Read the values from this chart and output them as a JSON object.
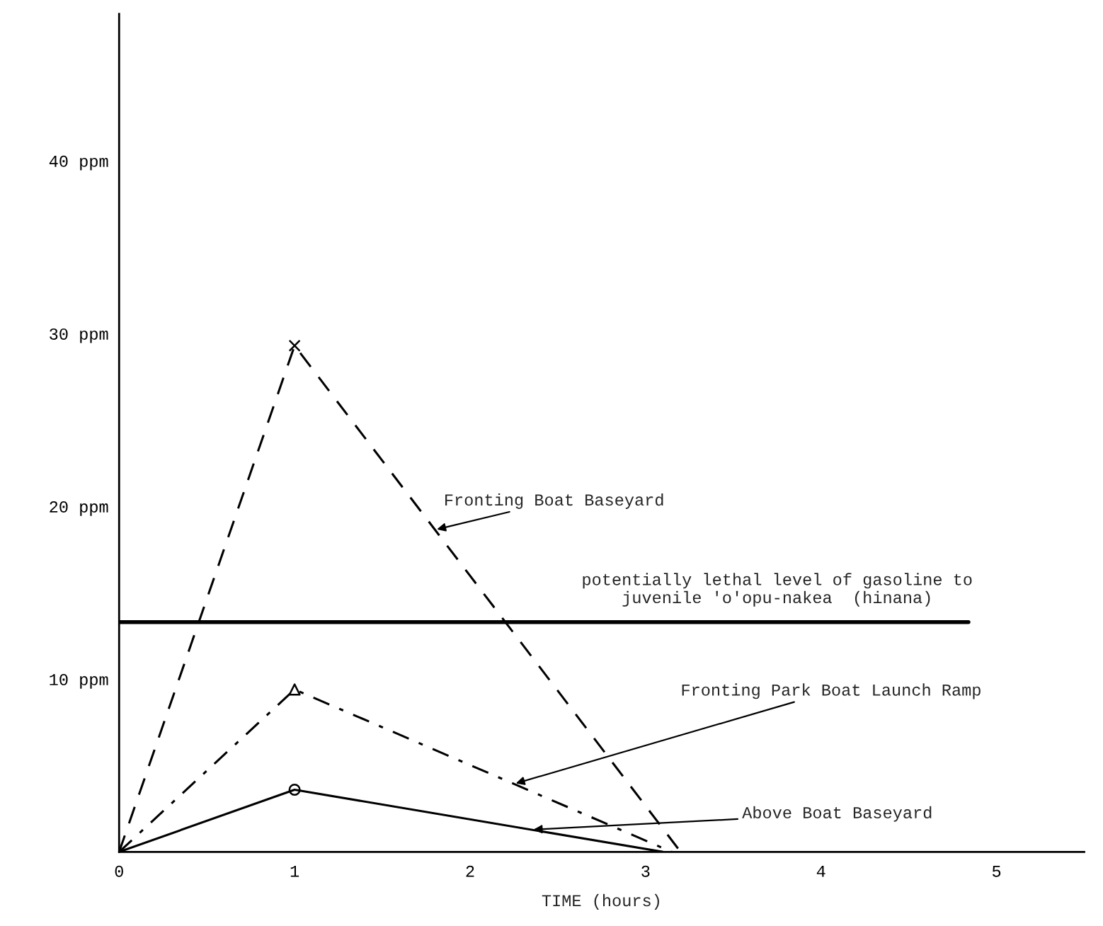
{
  "chart_data": {
    "type": "line",
    "xlabel": "TIME (hours)",
    "xlim": [
      0,
      5.5
    ],
    "xticks": [
      0,
      1,
      2,
      3,
      4,
      5
    ],
    "ylim": [
      0,
      48.5
    ],
    "yticks": [
      {
        "value": 10,
        "label": "10 ppm"
      },
      {
        "value": 20,
        "label": "20 ppm"
      },
      {
        "value": 30,
        "label": "30 ppm"
      },
      {
        "value": 40,
        "label": "40 ppm"
      }
    ],
    "grid": false,
    "legend": false,
    "series": [
      {
        "name": "Fronting Boat Baseyard",
        "color": "#000000",
        "x": [
          0,
          1,
          3.2
        ],
        "values": [
          0,
          29.3,
          0
        ],
        "line_style": "dashed"
      },
      {
        "name": "Fronting Park Boat Launch Ramp",
        "color": "#000000",
        "x": [
          0,
          1,
          3.15
        ],
        "values": [
          0,
          9.4,
          0
        ],
        "line_style": "dashdot"
      },
      {
        "name": "Above Boat Baseyard",
        "color": "#000000",
        "x": [
          0,
          1,
          3.1
        ],
        "values": [
          0,
          3.6,
          0
        ],
        "line_style": "solid"
      },
      {
        "type": "scatter",
        "color": "#000000",
        "x": [
          1
        ],
        "values": [
          29.3
        ],
        "marker": "cross"
      },
      {
        "type": "scatter",
        "color": "#000000",
        "x": [
          1
        ],
        "values": [
          9.4
        ],
        "marker": "triangle"
      },
      {
        "type": "scatter",
        "color": "#000000",
        "x": [
          1
        ],
        "values": [
          3.6
        ],
        "marker": "circle"
      }
    ],
    "ref_lines": [
      {
        "axis": "y",
        "value": 13.3,
        "label": "potentially lethal level of gasoline to\njuvenile 'o'opu-nakea  (hinana)",
        "color": "#000000",
        "line_style": "solid"
      }
    ]
  }
}
